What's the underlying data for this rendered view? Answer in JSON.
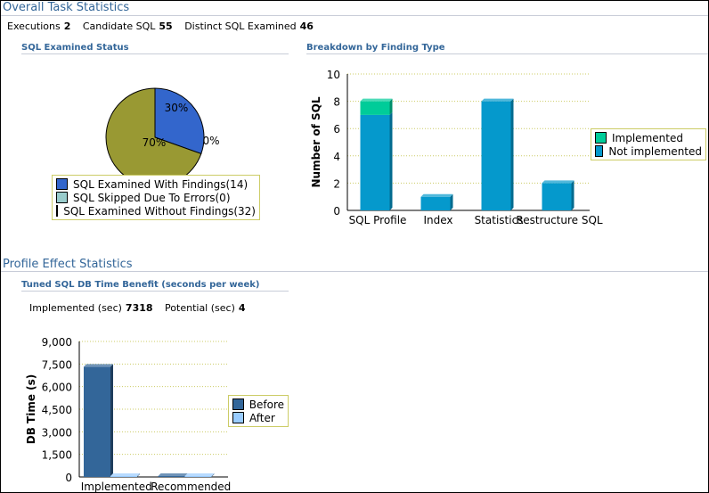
{
  "overall": {
    "title": "Overall Task Statistics",
    "stats": [
      {
        "label": "Executions",
        "value": "2"
      },
      {
        "label": "Candidate SQL",
        "value": "55"
      },
      {
        "label": "Distinct SQL Examined",
        "value": "46"
      }
    ]
  },
  "profile": {
    "title": "Profile Effect Statistics",
    "stats": [
      {
        "label": "Implemented (sec)",
        "value": "7318"
      },
      {
        "label": "Potential (sec)",
        "value": "4"
      }
    ]
  },
  "chart_data": [
    {
      "type": "pie",
      "title": "SQL Examined Status",
      "slices": [
        {
          "name": "SQL Examined With Findings(14)",
          "value": 14,
          "label": "30%",
          "color": "#3366cc"
        },
        {
          "name": "SQL Skipped Due To Errors(0)",
          "value": 0,
          "label": "0%",
          "color": "#99cccc"
        },
        {
          "name": "SQL Examined Without Findings(32)",
          "value": 32,
          "label": "70%",
          "color": "#999933"
        }
      ],
      "legend": "bottom"
    },
    {
      "type": "bar",
      "stacked": true,
      "title": "Breakdown by Finding Type",
      "ylabel": "Number of SQL",
      "ylim": [
        0,
        10
      ],
      "yticks": [
        "0",
        "2",
        "4",
        "6",
        "8",
        "10"
      ],
      "categories": [
        "SQL Profile",
        "Index",
        "Statistics",
        "Restructure SQL"
      ],
      "series": [
        {
          "name": "Not implemented",
          "values": [
            7,
            1,
            8,
            2
          ],
          "color": "#0599cc"
        },
        {
          "name": "Implemented",
          "values": [
            1,
            0,
            0,
            0
          ],
          "color": "#00cc99"
        }
      ],
      "grid": true,
      "legend": "right"
    },
    {
      "type": "bar",
      "title": "Tuned SQL DB Time Benefit (seconds per week)",
      "ylabel": "DB Time (s)",
      "ylim": [
        0,
        9000
      ],
      "yticks": [
        "0",
        "1,500",
        "3,000",
        "4,500",
        "6,000",
        "7,500",
        "9,000"
      ],
      "categories": [
        "Implemented",
        "Recommended"
      ],
      "series": [
        {
          "name": "Before",
          "values": [
            7318,
            4
          ],
          "color": "#336699"
        },
        {
          "name": "After",
          "values": [
            20,
            0
          ],
          "color": "#99ccff"
        }
      ],
      "grid": true,
      "legend": "right"
    }
  ]
}
